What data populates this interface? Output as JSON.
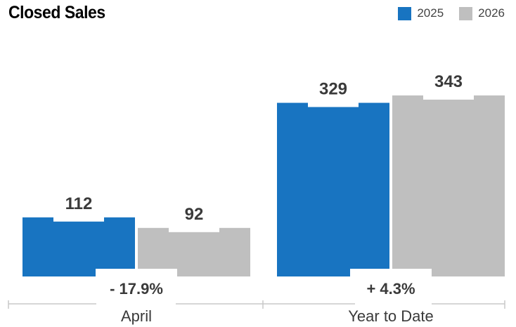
{
  "title": "Closed Sales",
  "colors": {
    "series_2025": "#1874c1",
    "series_2026": "#bfbfbf",
    "axis": "#c8c8c8"
  },
  "chart_data": {
    "type": "bar",
    "title": "Closed Sales",
    "categories": [
      "April",
      "Year to Date"
    ],
    "series": [
      {
        "name": "2025",
        "values": [
          112,
          329
        ]
      },
      {
        "name": "2026",
        "values": [
          92,
          343
        ]
      }
    ],
    "changes": [
      "- 17.9%",
      "+ 4.3%"
    ],
    "legend": "top-right",
    "grid": false
  }
}
